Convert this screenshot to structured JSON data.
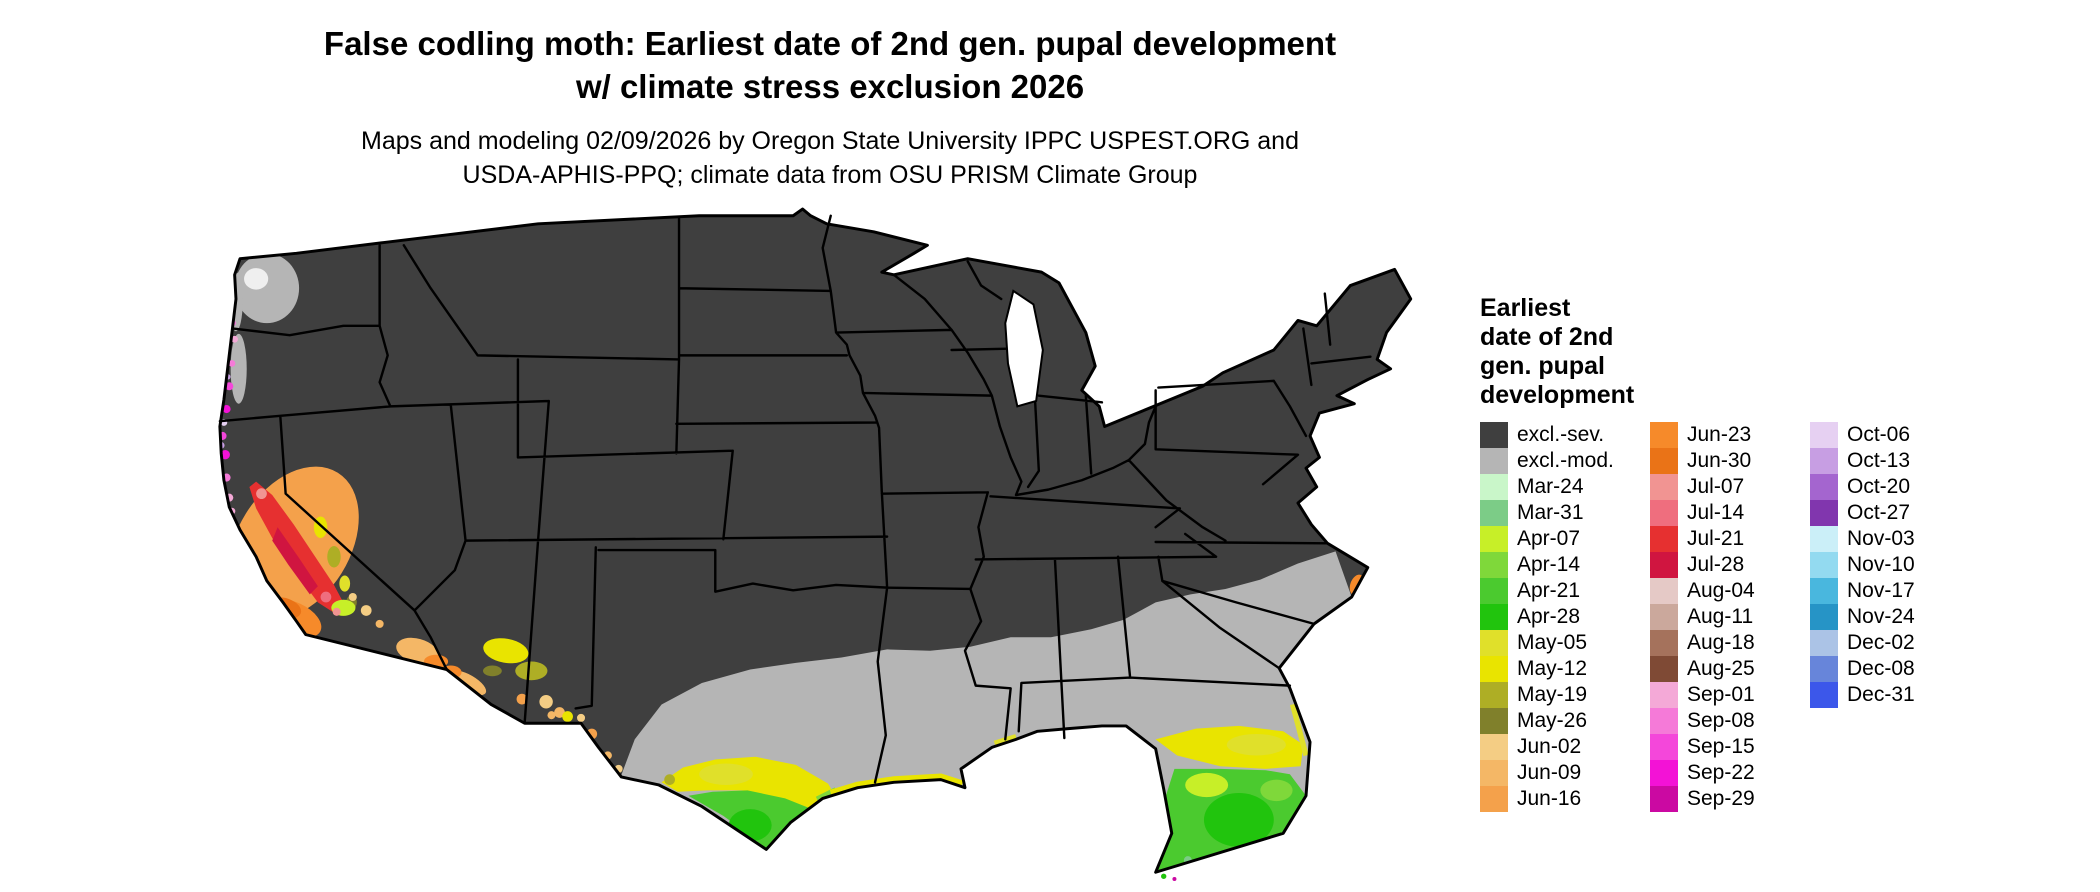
{
  "title": {
    "line1": "False codling moth: Earliest date of 2nd gen. pupal development",
    "line2": "w/ climate stress exclusion 2026"
  },
  "subtitle": {
    "line1": "Maps and modeling 02/09/2026 by Oregon State University IPPC USPEST.ORG and",
    "line2": "USDA-APHIS-PPQ; climate data from OSU PRISM Climate Group"
  },
  "legend": {
    "title_lines": [
      "Earliest",
      "date of 2nd",
      "gen. pupal",
      "development"
    ],
    "palette": [
      {
        "id": "excl_sev",
        "label": "excl.-sev.",
        "color": "#3f3f3f"
      },
      {
        "id": "excl_mod",
        "label": "excl.-mod.",
        "color": "#b5b5b5"
      },
      {
        "id": "mar24",
        "label": "Mar-24",
        "color": "#c9f6c9"
      },
      {
        "id": "mar31",
        "label": "Mar-31",
        "color": "#7ccc87"
      },
      {
        "id": "apr07",
        "label": "Apr-07",
        "color": "#c7ef28"
      },
      {
        "id": "apr14",
        "label": "Apr-14",
        "color": "#7fd83a"
      },
      {
        "id": "apr21",
        "label": "Apr-21",
        "color": "#4bca2f"
      },
      {
        "id": "apr28",
        "label": "Apr-28",
        "color": "#21c40d"
      },
      {
        "id": "may05",
        "label": "May-05",
        "color": "#e0e02a"
      },
      {
        "id": "may12",
        "label": "May-12",
        "color": "#e9e400"
      },
      {
        "id": "may19",
        "label": "May-19",
        "color": "#aeae25"
      },
      {
        "id": "may26",
        "label": "May-26",
        "color": "#80802b"
      },
      {
        "id": "jun02",
        "label": "Jun-02",
        "color": "#f4cd84"
      },
      {
        "id": "jun09",
        "label": "Jun-09",
        "color": "#f4b766"
      },
      {
        "id": "jun16",
        "label": "Jun-16",
        "color": "#f4a14b"
      },
      {
        "id": "jun23",
        "label": "Jun-23",
        "color": "#f68a2a"
      },
      {
        "id": "jun30",
        "label": "Jun-30",
        "color": "#ea7317"
      },
      {
        "id": "jul07",
        "label": "Jul-07",
        "color": "#f19492"
      },
      {
        "id": "jul14",
        "label": "Jul-14",
        "color": "#ef6e7e"
      },
      {
        "id": "jul21",
        "label": "Jul-21",
        "color": "#e63030"
      },
      {
        "id": "jul28",
        "label": "Jul-28",
        "color": "#d01540"
      },
      {
        "id": "aug04",
        "label": "Aug-04",
        "color": "#e5c9c6"
      },
      {
        "id": "aug11",
        "label": "Aug-11",
        "color": "#cba89c"
      },
      {
        "id": "aug18",
        "label": "Aug-18",
        "color": "#a5725c"
      },
      {
        "id": "aug25",
        "label": "Aug-25",
        "color": "#7f4a35"
      },
      {
        "id": "sep01",
        "label": "Sep-01",
        "color": "#f4a9d7"
      },
      {
        "id": "sep08",
        "label": "Sep-08",
        "color": "#f57ad8"
      },
      {
        "id": "sep15",
        "label": "Sep-15",
        "color": "#f447da"
      },
      {
        "id": "sep22",
        "label": "Sep-22",
        "color": "#f312d6"
      },
      {
        "id": "sep29",
        "label": "Sep-29",
        "color": "#cb09a2"
      },
      {
        "id": "oct06",
        "label": "Oct-06",
        "color": "#e6d0f2"
      },
      {
        "id": "oct13",
        "label": "Oct-13",
        "color": "#c79ee3"
      },
      {
        "id": "oct20",
        "label": "Oct-20",
        "color": "#a465cf"
      },
      {
        "id": "oct27",
        "label": "Oct-27",
        "color": "#8136ae"
      },
      {
        "id": "nov03",
        "label": "Nov-03",
        "color": "#cbeff8"
      },
      {
        "id": "nov10",
        "label": "Nov-10",
        "color": "#93daf0"
      },
      {
        "id": "nov17",
        "label": "Nov-17",
        "color": "#49b7de"
      },
      {
        "id": "nov24",
        "label": "Nov-24",
        "color": "#2694c6"
      },
      {
        "id": "dec02",
        "label": "Dec-02",
        "color": "#abc3e6"
      },
      {
        "id": "dec08",
        "label": "Dec-08",
        "color": "#6785da"
      },
      {
        "id": "dec31",
        "label": "Dec-31",
        "color": "#3c57ea"
      }
    ],
    "columns": [
      [
        "excl_sev",
        "excl_mod",
        "mar24",
        "mar31",
        "apr07",
        "apr14",
        "apr21",
        "apr28",
        "may05",
        "may12",
        "may19",
        "may26",
        "jun02",
        "jun09",
        "jun16"
      ],
      [
        "jun23",
        "jun30",
        "jul07",
        "jul14",
        "jul21",
        "jul28",
        "aug04",
        "aug11",
        "aug18",
        "aug25",
        "sep01",
        "sep08",
        "sep15",
        "sep22",
        "sep29"
      ],
      [
        "oct06",
        "oct13",
        "oct20",
        "oct27",
        "nov03",
        "nov10",
        "nov17",
        "nov24",
        "dec02",
        "dec08",
        "dec31"
      ]
    ]
  }
}
